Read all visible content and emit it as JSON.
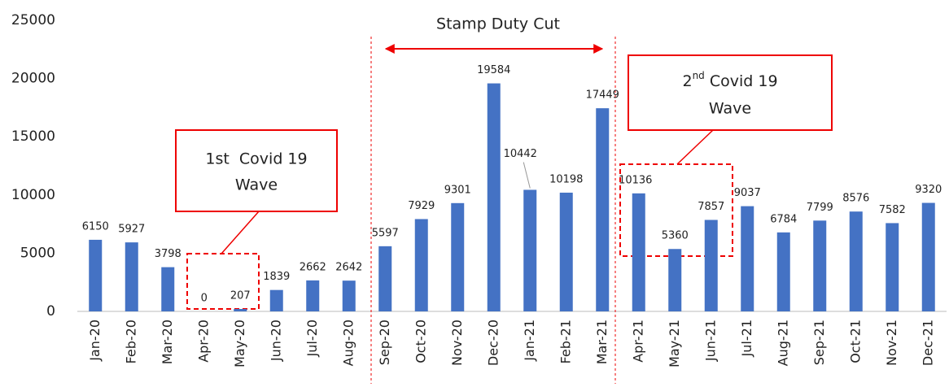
{
  "chart_data": {
    "type": "bar",
    "categories": [
      "Jan-20",
      "Feb-20",
      "Mar-20",
      "Apr-20",
      "May-20",
      "Jun-20",
      "Jul-20",
      "Aug-20",
      "Sep-20",
      "Oct-20",
      "Nov-20",
      "Dec-20",
      "Jan-21",
      "Feb-21",
      "Mar-21",
      "Apr-21",
      "May-21",
      "Jun-21",
      "Jul-21",
      "Aug-21",
      "Sep-21",
      "Oct-21",
      "Nov-21",
      "Dec-21"
    ],
    "values": [
      6150,
      5927,
      3798,
      0,
      207,
      1839,
      2662,
      2642,
      5597,
      7929,
      9301,
      19584,
      10442,
      10198,
      17449,
      10136,
      5360,
      7857,
      9037,
      6784,
      7799,
      8576,
      7582,
      9320
    ],
    "color": "#4472c4",
    "ylim": [
      0,
      25000
    ],
    "yticks": [
      0,
      5000,
      10000,
      15000,
      20000,
      25000
    ],
    "grid": false,
    "annotations": {
      "stamp_duty": "Stamp Duty Cut",
      "wave1": [
        "1st  Covid 19",
        "Wave"
      ],
      "wave2": {
        "number": "2",
        "suffix": "nd",
        "rest": " Covid 19",
        "line2": "Wave"
      }
    }
  }
}
